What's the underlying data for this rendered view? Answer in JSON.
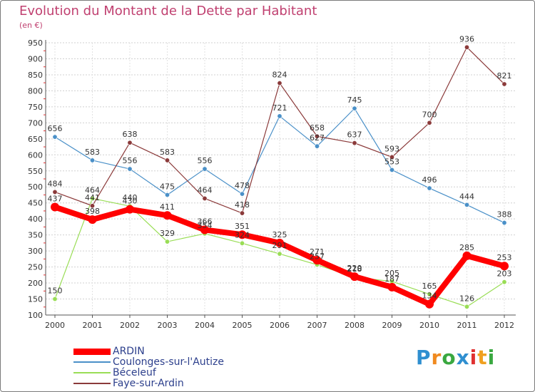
{
  "title": "Evolution du Montant de la Dette par Habitant",
  "unit": "(en €)",
  "logo": {
    "letters": [
      "P",
      "r",
      "o",
      "x",
      "i",
      "t",
      "i"
    ],
    "colors": [
      "#2f8fd0",
      "#f08a20",
      "#3aa840",
      "#2f8fd0",
      "#e03030",
      "#f0a020",
      "#3aa840"
    ]
  },
  "chart_data": {
    "type": "line",
    "title": "Evolution du Montant de la Dette par Habitant",
    "ylabel": "(en €)",
    "xlabel": "",
    "x": [
      "2000",
      "2001",
      "2002",
      "2003",
      "2004",
      "2005",
      "2006",
      "2007",
      "2008",
      "2009",
      "2010",
      "2011",
      "2012"
    ],
    "ylim": [
      100,
      950
    ],
    "yticks": [
      100,
      150,
      200,
      250,
      300,
      350,
      400,
      450,
      500,
      550,
      600,
      650,
      700,
      750,
      800,
      850,
      900,
      950
    ],
    "grid": true,
    "series": [
      {
        "name": "ARDIN",
        "color": "#ff0000",
        "values": [
          437,
          398,
          430,
          411,
          366,
          351,
          325,
          271,
          220,
          187,
          134,
          285,
          253
        ],
        "labels": [
          "437",
          "398",
          "430",
          "411",
          "366",
          "351",
          "325",
          "271",
          "220",
          "187",
          "134",
          "285",
          "253"
        ]
      },
      {
        "name": "Coulonges-sur-l'Autize",
        "color": "#4a90c8",
        "values": [
          656,
          583,
          556,
          475,
          556,
          478,
          721,
          627,
          745,
          553,
          496,
          444,
          388
        ],
        "labels": [
          "656",
          "583",
          "556",
          "475",
          "556",
          "478",
          "721",
          "627",
          "745",
          "553",
          "496",
          "444",
          "388"
        ]
      },
      {
        "name": "Béceleuf",
        "color": "#99dd55",
        "values": [
          150,
          464,
          440,
          329,
          354,
          324,
          291,
          257,
          218,
          205,
          165,
          126,
          203
        ],
        "labels": [
          "150",
          "464",
          "440",
          "329",
          "354",
          "324",
          "291",
          "257",
          "218",
          "205",
          "165",
          "126",
          "203"
        ]
      },
      {
        "name": "Faye-sur-Ardin",
        "color": "#8b3a3a",
        "values": [
          484,
          441,
          638,
          583,
          464,
          418,
          824,
          658,
          637,
          593,
          700,
          936,
          821
        ],
        "labels": [
          "484",
          "441",
          "638",
          "583",
          "464",
          "418",
          "824",
          "658",
          "637",
          "593",
          "700",
          "936",
          "821"
        ]
      }
    ]
  }
}
